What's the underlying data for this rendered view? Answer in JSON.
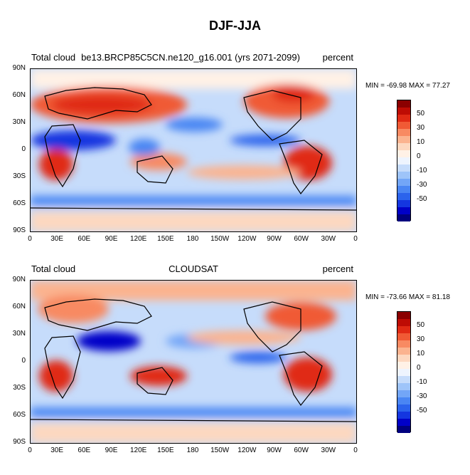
{
  "figure": {
    "title": "DJF-JJA"
  },
  "colorbar": {
    "colors": [
      "#00007f",
      "#0000c8",
      "#1436e0",
      "#2b63ec",
      "#4a86f3",
      "#73a6f7",
      "#9ec4f9",
      "#c6dcfb",
      "#eef4fe",
      "#fff1e6",
      "#fdd8c0",
      "#fbb38f",
      "#f88a62",
      "#f05a35",
      "#e02a14",
      "#be0c04",
      "#8b0000"
    ],
    "labels": [
      "50",
      "30",
      "10",
      "0",
      "-10",
      "-30",
      "-50"
    ]
  },
  "panels": [
    {
      "left_label": "Total cloud",
      "center_label": "be13.BRCP85C5CN.ne120_g16.001 (yrs 2071-2099)",
      "right_label": "percent",
      "minmax": "MIN = -69.98 MAX =  77.27"
    },
    {
      "left_label": "Total cloud",
      "center_label": "CLOUDSAT",
      "right_label": "percent",
      "minmax": "MIN = -73.66 MAX =  81.18"
    }
  ],
  "axes": {
    "lat_ticks": [
      "90N",
      "60N",
      "30N",
      "0",
      "30S",
      "60S",
      "90S"
    ],
    "lon_ticks": [
      "0",
      "30E",
      "60E",
      "90E",
      "120E",
      "150E",
      "180",
      "150W",
      "120W",
      "90W",
      "60W",
      "30W",
      "0"
    ]
  }
}
